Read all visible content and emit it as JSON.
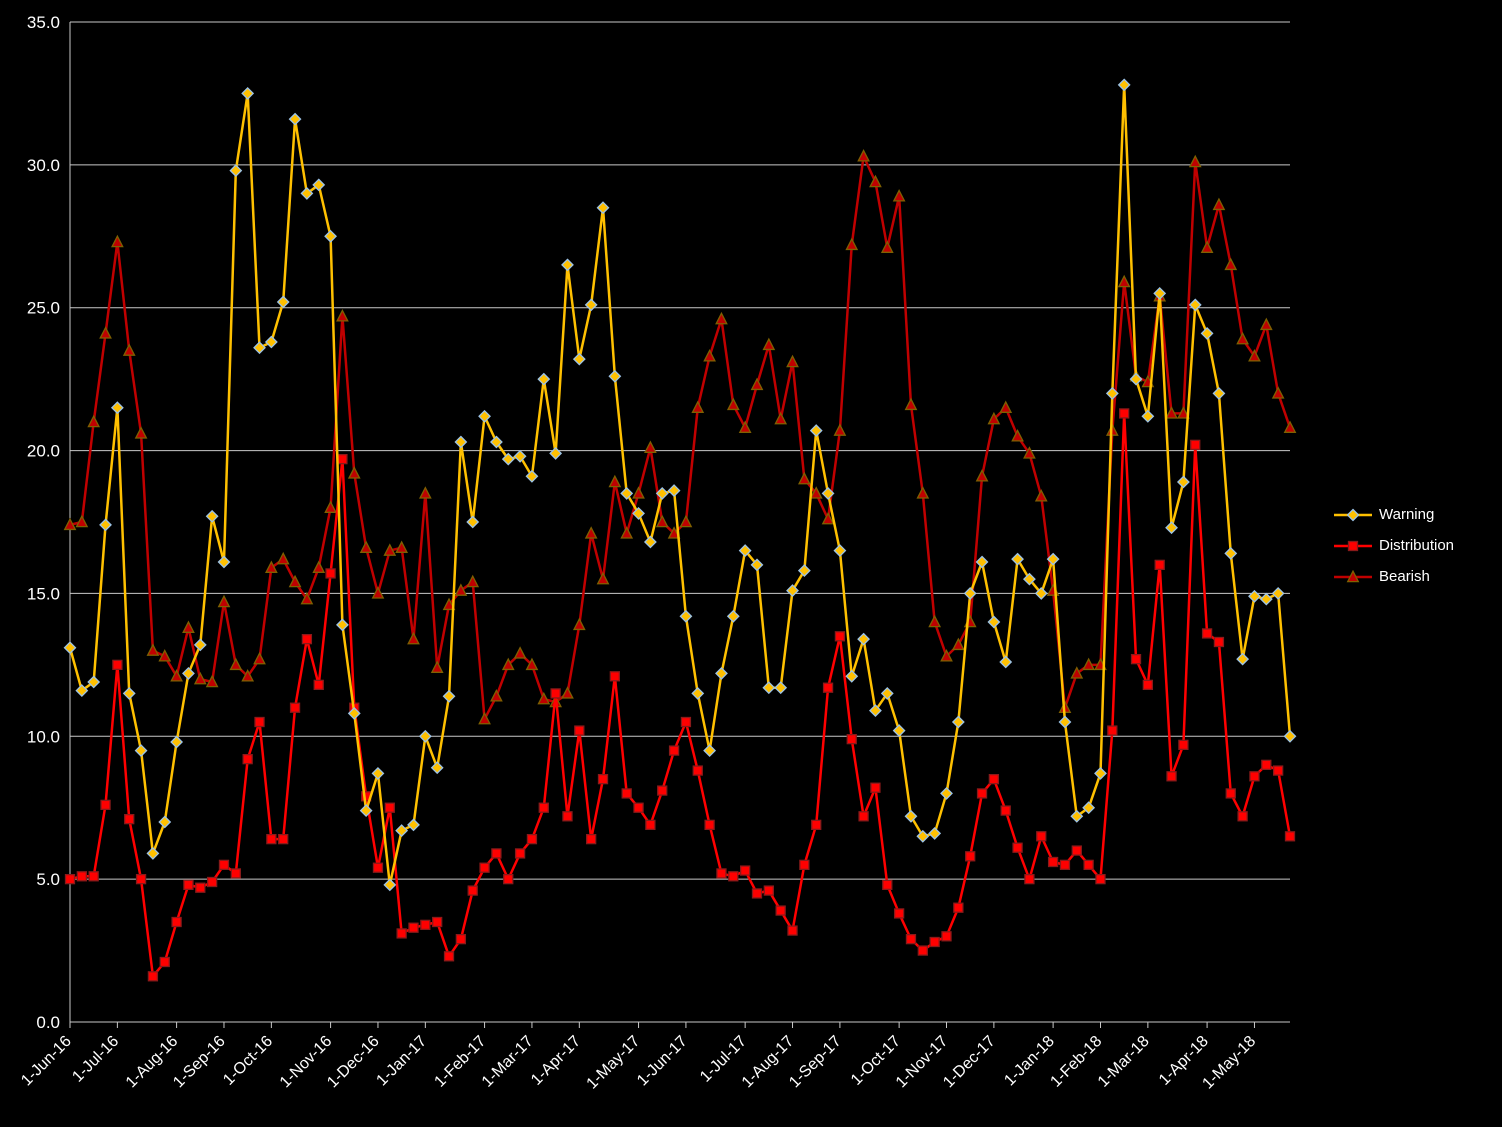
{
  "chart_data": {
    "type": "line",
    "title": "",
    "background": "#000000",
    "gridline_color": "#C9C9C9",
    "text_color": "#FFFFFF",
    "grid": "horizontal",
    "legend_position": "right",
    "y_axis": {
      "min": 0,
      "max": 35,
      "step": 5,
      "tick_labels": [
        "0.0",
        "5.0",
        "10.0",
        "15.0",
        "20.0",
        "25.0",
        "30.0",
        "35.0"
      ]
    },
    "x_axis": {
      "tick_labels": [
        "1-Jun-16",
        "1-Jul-16",
        "1-Aug-16",
        "1-Sep-16",
        "1-Oct-16",
        "1-Nov-16",
        "1-Dec-16",
        "1-Jan-17",
        "1-Feb-17",
        "1-Mar-17",
        "1-Apr-17",
        "1-May-17",
        "1-Jun-17",
        "1-Jul-17",
        "1-Aug-17",
        "1-Sep-17",
        "1-Oct-17",
        "1-Nov-17",
        "1-Dec-17",
        "1-Jan-18",
        "1-Feb-18",
        "1-Mar-18",
        "1-Apr-18",
        "1-May-18"
      ],
      "tick_indices": [
        0,
        4,
        9,
        13,
        17,
        22,
        26,
        30,
        35,
        39,
        43,
        48,
        52,
        57,
        61,
        65,
        70,
        74,
        78,
        83,
        87,
        91,
        96,
        100
      ]
    },
    "series": [
      {
        "name": "Warning",
        "color": "#FFC000",
        "marker": "diamond",
        "marker_outline": "#9DC3E6",
        "values": [
          13.1,
          11.6,
          11.9,
          17.4,
          21.5,
          11.5,
          9.5,
          5.9,
          7.0,
          9.8,
          12.2,
          13.2,
          17.7,
          16.1,
          29.8,
          32.5,
          23.6,
          23.8,
          25.2,
          31.6,
          29.0,
          29.3,
          27.5,
          13.9,
          10.8,
          7.4,
          8.7,
          4.8,
          6.7,
          6.9,
          10.0,
          8.9,
          11.4,
          20.3,
          17.5,
          21.2,
          20.3,
          19.7,
          19.8,
          19.1,
          22.5,
          19.9,
          26.5,
          23.2,
          25.1,
          28.5,
          22.6,
          18.5,
          17.8,
          16.8,
          18.5,
          18.6,
          14.2,
          11.5,
          9.5,
          12.2,
          14.2,
          16.5,
          16.0,
          11.7,
          11.7,
          15.1,
          15.8,
          20.7,
          18.5,
          16.5,
          12.1,
          13.4,
          10.9,
          11.5,
          10.2,
          7.2,
          6.5,
          6.6,
          8.0,
          10.5,
          15.0,
          16.1,
          14.0,
          12.6,
          16.2,
          15.5,
          15.0,
          16.2,
          10.5,
          7.2,
          7.5,
          8.7,
          22.0,
          32.8,
          22.5,
          21.2,
          25.5,
          17.3,
          18.9,
          25.1,
          24.1,
          22.0,
          16.4,
          12.7,
          14.9,
          14.8,
          15.0,
          10.0
        ]
      },
      {
        "name": "Distribution",
        "color": "#FF0000",
        "marker": "square",
        "marker_outline": "#8B1A1A",
        "values": [
          5.0,
          5.1,
          5.1,
          7.6,
          12.5,
          7.1,
          5.0,
          1.6,
          2.1,
          3.5,
          4.8,
          4.7,
          4.9,
          5.5,
          5.2,
          9.2,
          10.5,
          6.4,
          6.4,
          11.0,
          13.4,
          11.8,
          15.7,
          19.7,
          11.0,
          7.9,
          5.4,
          7.5,
          3.1,
          3.3,
          3.4,
          3.5,
          2.3,
          2.9,
          4.6,
          5.4,
          5.9,
          5.0,
          5.9,
          6.4,
          7.5,
          11.5,
          7.2,
          10.2,
          6.4,
          8.5,
          12.1,
          8.0,
          7.5,
          6.9,
          8.1,
          9.5,
          10.5,
          8.8,
          6.9,
          5.2,
          5.1,
          5.3,
          4.5,
          4.6,
          3.9,
          3.2,
          5.5,
          6.9,
          11.7,
          13.5,
          9.9,
          7.2,
          8.2,
          4.8,
          3.8,
          2.9,
          2.5,
          2.8,
          3.0,
          4.0,
          5.8,
          8.0,
          8.5,
          7.4,
          6.1,
          5.0,
          6.5,
          5.6,
          5.5,
          6.0,
          5.5,
          5.0,
          10.2,
          21.3,
          12.7,
          11.8,
          16.0,
          8.6,
          9.7,
          20.2,
          13.6,
          13.3,
          8.0,
          7.2,
          8.6,
          9.0,
          8.8,
          6.5
        ]
      },
      {
        "name": "Bearish",
        "color": "#C00000",
        "marker": "triangle",
        "marker_outline": "#7F6000",
        "values": [
          17.4,
          17.5,
          21.0,
          24.1,
          27.3,
          23.5,
          20.6,
          13.0,
          12.8,
          12.1,
          13.8,
          12.0,
          11.9,
          14.7,
          12.5,
          12.1,
          12.7,
          15.9,
          16.2,
          15.4,
          14.8,
          15.9,
          18.0,
          24.7,
          19.2,
          16.6,
          15.0,
          16.5,
          16.6,
          13.4,
          18.5,
          12.4,
          14.6,
          15.1,
          15.4,
          10.6,
          11.4,
          12.5,
          12.9,
          12.5,
          11.3,
          11.2,
          11.5,
          13.9,
          17.1,
          15.5,
          18.9,
          17.1,
          18.5,
          20.1,
          17.5,
          17.1,
          17.5,
          21.5,
          23.3,
          24.6,
          21.6,
          20.8,
          22.3,
          23.7,
          21.1,
          23.1,
          19.0,
          18.5,
          17.6,
          20.7,
          27.2,
          30.3,
          29.4,
          27.1,
          28.9,
          21.6,
          18.5,
          14.0,
          12.8,
          13.2,
          14.0,
          19.1,
          21.1,
          21.5,
          20.5,
          19.9,
          18.4,
          15.1,
          11.0,
          12.2,
          12.5,
          12.5,
          20.7,
          25.9,
          22.6,
          22.4,
          25.4,
          21.3,
          21.3,
          30.1,
          27.1,
          28.6,
          26.5,
          23.9,
          23.3,
          24.4,
          22.0,
          20.8
        ]
      }
    ]
  }
}
